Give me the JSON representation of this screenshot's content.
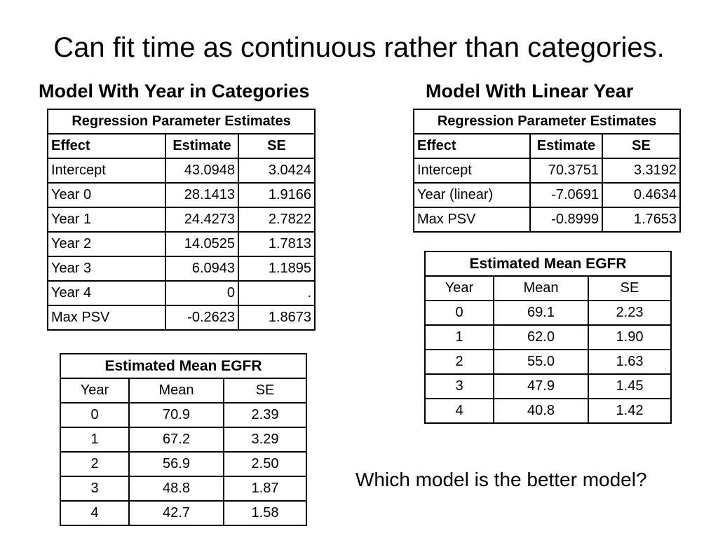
{
  "slide": {
    "title": "Can fit time as continuous rather than categories.",
    "question": "Which model is the better model?"
  },
  "left": {
    "heading": "Model With Year in Categories",
    "regression": {
      "caption": "Regression Parameter Estimates",
      "headers": [
        "Effect",
        "Estimate",
        "SE"
      ],
      "rows": [
        [
          "Intercept",
          "43.0948",
          "3.0424"
        ],
        [
          "Year 0",
          "28.1413",
          "1.9166"
        ],
        [
          "Year 1",
          "24.4273",
          "2.7822"
        ],
        [
          "Year 2",
          "14.0525",
          "1.7813"
        ],
        [
          "Year 3",
          "6.0943",
          "1.1895"
        ],
        [
          "Year 4",
          "0",
          "."
        ],
        [
          "Max PSV",
          "-0.2623",
          "1.8673"
        ]
      ]
    },
    "egfr": {
      "caption": "Estimated Mean EGFR",
      "headers": [
        "Year",
        "Mean",
        "SE"
      ],
      "rows": [
        [
          "0",
          "70.9",
          "2.39"
        ],
        [
          "1",
          "67.2",
          "3.29"
        ],
        [
          "2",
          "56.9",
          "2.50"
        ],
        [
          "3",
          "48.8",
          "1.87"
        ],
        [
          "4",
          "42.7",
          "1.58"
        ]
      ]
    }
  },
  "right": {
    "heading": "Model With Linear Year",
    "regression": {
      "caption": "Regression Parameter Estimates",
      "headers": [
        "Effect",
        "Estimate",
        "SE"
      ],
      "rows": [
        [
          "Intercept",
          "70.3751",
          "3.3192"
        ],
        [
          "Year (linear)",
          "-7.0691",
          "0.4634"
        ],
        [
          "Max PSV",
          "-0.8999",
          "1.7653"
        ]
      ]
    },
    "egfr": {
      "caption": "Estimated Mean EGFR",
      "headers": [
        "Year",
        "Mean",
        "SE"
      ],
      "rows": [
        [
          "0",
          "69.1",
          "2.23"
        ],
        [
          "1",
          "62.0",
          "1.90"
        ],
        [
          "2",
          "55.0",
          "1.63"
        ],
        [
          "3",
          "47.9",
          "1.45"
        ],
        [
          "4",
          "40.8",
          "1.42"
        ]
      ]
    }
  }
}
